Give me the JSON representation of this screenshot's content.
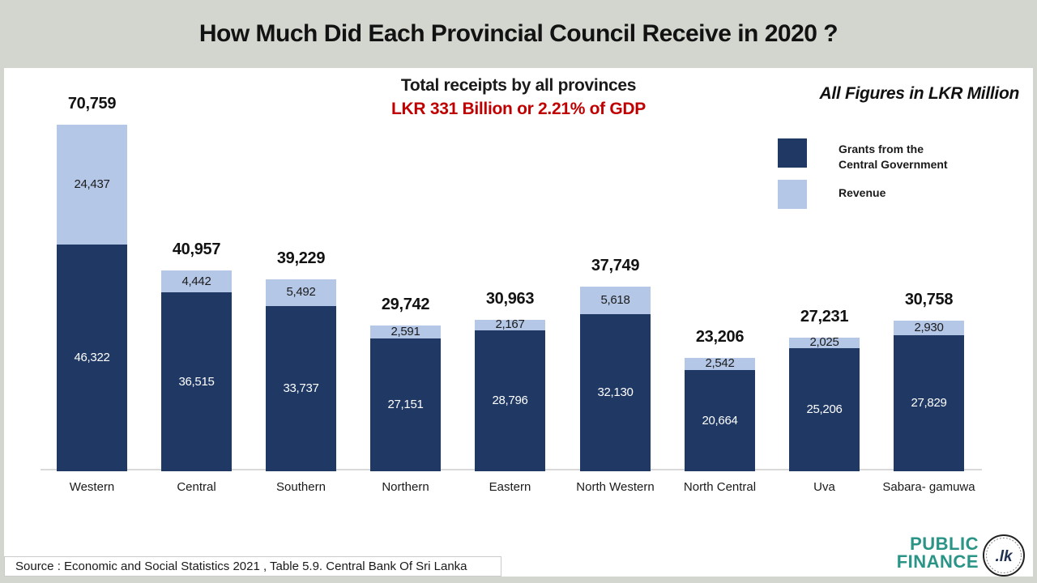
{
  "header": {
    "title": "How Much Did Each Provincial Council Receive in 2020 ?"
  },
  "subtitle": {
    "line1": "Total receipts by all provinces",
    "line2": "LKR 331 Billion or 2.21% of GDP"
  },
  "units_note": "All Figures in LKR Million",
  "legend": {
    "grants_label": "Grants from the\nCentral Government",
    "revenue_label": "Revenue"
  },
  "colors": {
    "grants": "#1F3864",
    "revenue": "#B4C7E7",
    "accent_red": "#C00000",
    "header_bg": "#D3D6CF",
    "logo_teal": "#2A9486",
    "badge_navy": "#1F3050",
    "axis_gray": "#D9D9D9"
  },
  "source": "Source : Economic and Social Statistics 2021 , Table 5.9. Central Bank Of Sri Lanka",
  "logo": {
    "line1": "PUBLIC",
    "line2": "FINANCE",
    "badge": ".lk"
  },
  "chart_data": {
    "type": "bar",
    "stacked": true,
    "title": "How Much Did Each Provincial Council Receive in 2020 ?",
    "unit": "LKR Million",
    "legend_position": "top-right",
    "grid": false,
    "ylim": [
      0,
      75000
    ],
    "categories": [
      "Western",
      "Central",
      "Southern",
      "Northern",
      "Eastern",
      "North Western",
      "North Central",
      "Uva",
      "Sabara- gamuwa"
    ],
    "series": [
      {
        "name": "Grants from the Central Government",
        "color": "#1F3864",
        "values": [
          46322,
          36515,
          33737,
          27151,
          28796,
          32130,
          20664,
          25206,
          27829
        ]
      },
      {
        "name": "Revenue",
        "color": "#B4C7E7",
        "values": [
          24437,
          4442,
          5492,
          2591,
          2167,
          5618,
          2542,
          2025,
          2930
        ]
      }
    ],
    "totals": [
      70759,
      40957,
      39229,
      29742,
      30963,
      37749,
      23206,
      27231,
      30758
    ]
  }
}
